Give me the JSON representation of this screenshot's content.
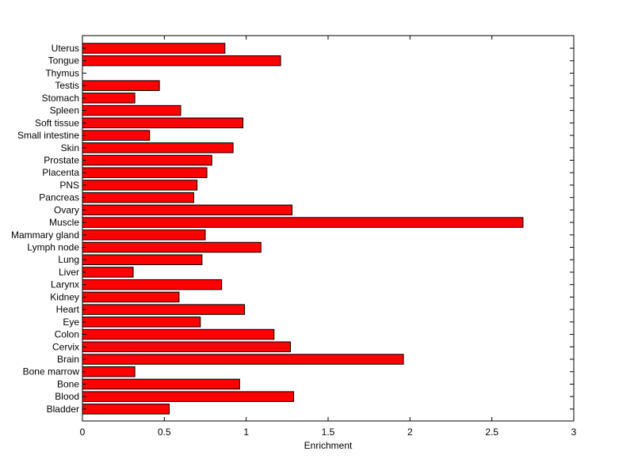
{
  "chart_data": {
    "type": "bar",
    "orientation": "horizontal",
    "title": "",
    "xlabel": "Enrichment",
    "ylabel": "",
    "xlim": [
      0,
      3
    ],
    "xticks": [
      0,
      0.5,
      1,
      1.5,
      2,
      2.5,
      3
    ],
    "xtick_labels": [
      "0",
      "0.5",
      "1",
      "1.5",
      "2",
      "2.5",
      "3"
    ],
    "grid": false,
    "bar_color": "#ff0000",
    "categories": [
      "Uterus",
      "Tongue",
      "Thymus",
      "Testis",
      "Stomach",
      "Spleen",
      "Soft tissue",
      "Small intestine",
      "Skin",
      "Prostate",
      "Placenta",
      "PNS",
      "Pancreas",
      "Ovary",
      "Muscle",
      "Mammary gland",
      "Lymph node",
      "Lung",
      "Liver",
      "Larynx",
      "Kidney",
      "Heart",
      "Eye",
      "Colon",
      "Cervix",
      "Brain",
      "Bone marrow",
      "Bone",
      "Blood",
      "Bladder"
    ],
    "values": [
      0.87,
      1.21,
      0.0,
      0.47,
      0.32,
      0.6,
      0.98,
      0.41,
      0.92,
      0.79,
      0.76,
      0.7,
      0.68,
      1.28,
      2.69,
      0.75,
      1.09,
      0.73,
      0.31,
      0.85,
      0.59,
      0.99,
      0.72,
      1.17,
      1.27,
      1.96,
      0.32,
      0.96,
      1.29,
      0.53
    ]
  }
}
